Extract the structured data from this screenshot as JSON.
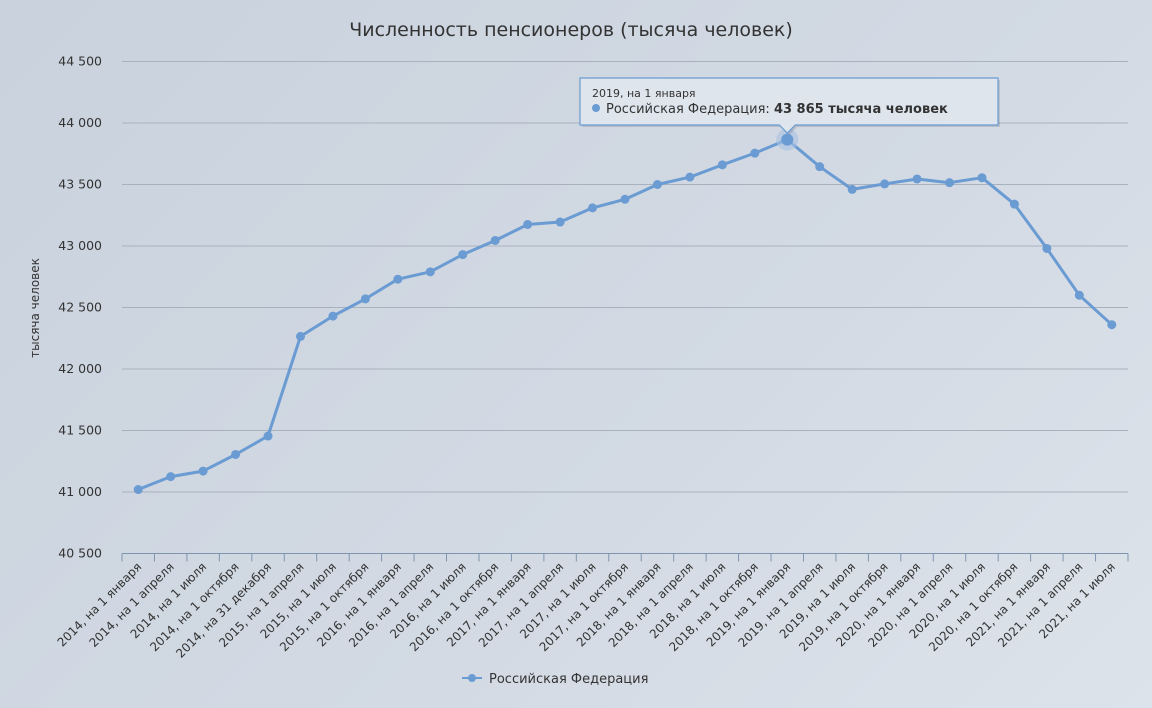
{
  "chart_data": {
    "type": "line",
    "title": "Численность пенсионеров (тысяча человек)",
    "ylabel": "тысяча человек",
    "xlabel": "",
    "ylim": [
      40500,
      44500
    ],
    "yticks": [
      "40 500",
      "41 000",
      "41 500",
      "42 000",
      "42 500",
      "43 000",
      "43 500",
      "44 000",
      "44 500"
    ],
    "ytick_values": [
      40500,
      41000,
      41500,
      42000,
      42500,
      43000,
      43500,
      44000,
      44500
    ],
    "grid": true,
    "legend_position": "bottom",
    "categories": [
      "2014, на 1 января",
      "2014, на 1 апреля",
      "2014, на 1 июля",
      "2014, на 1 октября",
      "2014, на 31 декабря",
      "2015, на 1 апреля",
      "2015, на 1 июля",
      "2015, на 1 октября",
      "2016, на 1 января",
      "2016, на 1 апреля",
      "2016, на 1 июля",
      "2016, на 1 октября",
      "2017, на 1 января",
      "2017, на 1 апреля",
      "2017, на 1 июля",
      "2017, на 1 октября",
      "2018, на 1 января",
      "2018, на 1 апреля",
      "2018, на 1 июля",
      "2018, на 1 октября",
      "2019, на 1 января",
      "2019, на 1 апреля",
      "2019, на 1 июля",
      "2019, на 1 октября",
      "2020, на 1 января",
      "2020, на 1 апреля",
      "2020, на 1 июля",
      "2020, на 1 октября",
      "2021, на 1 января",
      "2021, на 1 апреля",
      "2021, на 1 июля"
    ],
    "series": [
      {
        "name": "Российская Федерация",
        "color": "#6a9bd2",
        "values": [
          41020,
          41125,
          41170,
          41305,
          41455,
          42265,
          42430,
          42570,
          42730,
          42790,
          42930,
          43045,
          43175,
          43195,
          43310,
          43380,
          43500,
          43560,
          43660,
          43755,
          43865,
          43645,
          43460,
          43505,
          43545,
          43515,
          43555,
          43340,
          42980,
          42600,
          42360
        ]
      }
    ],
    "tooltip": {
      "header": "2019, на 1 января",
      "series_label": "Российская Федерация:",
      "value_text": "43 865 тысяча человек",
      "point_index": 20
    }
  }
}
